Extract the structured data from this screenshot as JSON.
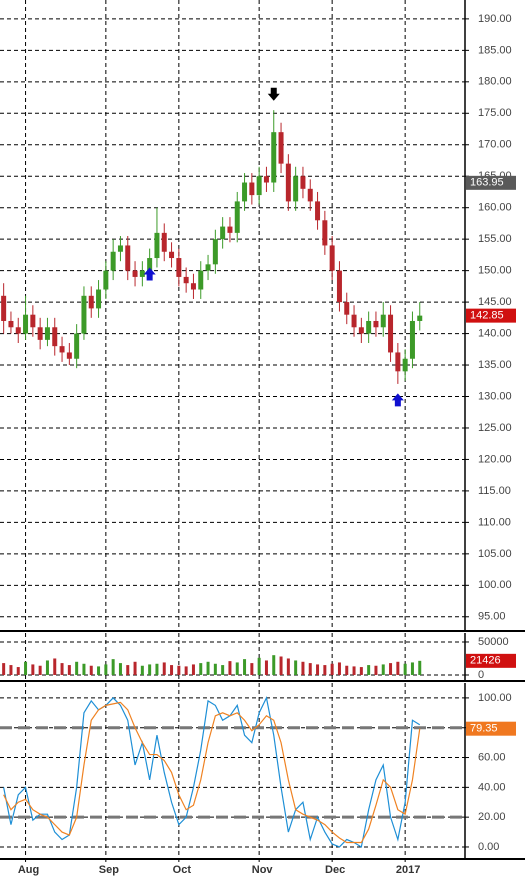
{
  "chart_data": [
    {
      "type": "candlestick",
      "categories": [
        null,
        null,
        null,
        "Aug",
        null,
        null,
        null,
        null,
        null,
        null,
        null,
        null,
        null,
        null,
        "Sep",
        null,
        null,
        null,
        null,
        null,
        null,
        null,
        null,
        null,
        "Oct",
        null,
        null,
        null,
        null,
        null,
        null,
        null,
        null,
        null,
        null,
        "Nov",
        null,
        null,
        null,
        null,
        null,
        null,
        null,
        null,
        null,
        "Dec",
        null,
        null,
        null,
        null,
        null,
        null,
        null,
        null,
        null,
        "2017",
        null,
        null
      ],
      "open": [
        146,
        142,
        141,
        140,
        143,
        141,
        139,
        141,
        138,
        137,
        136,
        140,
        146,
        144,
        147,
        150,
        153,
        154,
        150,
        149,
        150,
        152,
        156,
        153,
        152,
        149,
        148,
        147,
        150,
        151,
        155,
        157,
        156,
        161,
        164,
        162,
        165,
        164,
        172,
        167,
        161,
        165,
        163,
        161,
        158,
        154,
        150,
        145,
        143,
        141,
        140,
        142,
        141,
        143,
        137,
        134,
        136,
        142
      ],
      "high": [
        148,
        143.5,
        142.5,
        146,
        144.5,
        142.5,
        142.5,
        142.5,
        139.5,
        138.5,
        141.5,
        147.5,
        147.5,
        148.5,
        151.5,
        155,
        155.5,
        155.5,
        151.5,
        151.5,
        153.5,
        160,
        157.5,
        154.5,
        153.5,
        150.5,
        149.5,
        151.5,
        152.5,
        156.5,
        158.5,
        158.5,
        162.5,
        165.5,
        165.5,
        166.5,
        166.5,
        175.5,
        173.5,
        168.5,
        166.5,
        166.5,
        164.5,
        162.5,
        159.5,
        155.5,
        151.5,
        146.5,
        144.5,
        142.5,
        143.5,
        143.5,
        145,
        144.5,
        138.5,
        137.5,
        143.5,
        145
      ],
      "low": [
        140,
        140,
        138.5,
        139,
        139.5,
        137.5,
        138,
        136.5,
        135.5,
        135,
        134.5,
        139,
        142.5,
        142.5,
        145.5,
        148.5,
        151.5,
        148.5,
        147.5,
        147.5,
        148.5,
        150.5,
        151.5,
        150.5,
        147.5,
        146.5,
        145.5,
        145.5,
        148.5,
        149.5,
        153.5,
        154.5,
        154.5,
        159.5,
        160.5,
        160.5,
        162.5,
        162.5,
        165.5,
        159.5,
        159.5,
        161.5,
        159.5,
        156.5,
        152.5,
        148.5,
        143.5,
        141.5,
        139.5,
        138.5,
        138.5,
        139.5,
        139.5,
        135.5,
        132,
        132.5,
        134.5,
        140.5
      ],
      "close": [
        142,
        141,
        140,
        143,
        141,
        139,
        141,
        138,
        137,
        136,
        140,
        146,
        144,
        147,
        150,
        153,
        154,
        150,
        149,
        150,
        152,
        156,
        153,
        152,
        149,
        148,
        147,
        150,
        151,
        155,
        157,
        156,
        161,
        164,
        162,
        165,
        164,
        172,
        167,
        161,
        165,
        163,
        161,
        158,
        154,
        150,
        145,
        143,
        141,
        140,
        142,
        141,
        143,
        137,
        134,
        136,
        142,
        142.85
      ],
      "up_color": "#3c9a28",
      "down_color": "#b8262c",
      "ylim": [
        92.9,
        193.0
      ],
      "yticks": [
        {
          "value": 95,
          "label": "95.00"
        },
        {
          "value": 100,
          "label": "100.00"
        },
        {
          "value": 105,
          "label": "105.00"
        },
        {
          "value": 110,
          "label": "110.00"
        },
        {
          "value": 115,
          "label": "115.00"
        },
        {
          "value": 120,
          "label": "120.00"
        },
        {
          "value": 125,
          "label": "125.00"
        },
        {
          "value": 130,
          "label": "130.00"
        },
        {
          "value": 135,
          "label": "135.00"
        },
        {
          "value": 140,
          "label": "140.00"
        },
        {
          "value": 145,
          "label": "145.00"
        },
        {
          "value": 150,
          "label": "150.00"
        },
        {
          "value": 155,
          "label": "155.00"
        },
        {
          "value": 160,
          "label": "160.00"
        },
        {
          "value": 165,
          "label": "165.00"
        },
        {
          "value": 170,
          "label": "170.00"
        },
        {
          "value": 175,
          "label": "175.00"
        },
        {
          "value": 180,
          "label": "180.00"
        },
        {
          "value": 185,
          "label": "185.00"
        },
        {
          "value": 190,
          "label": "190.00"
        }
      ],
      "grid": true,
      "markers": [
        {
          "value": 163.95,
          "color": "#5a5a5a"
        },
        {
          "value": 142.85,
          "color": "#d01010"
        }
      ],
      "signals": [
        {
          "index": 20,
          "value": 150.5,
          "direction": "up",
          "color": "#1010d0"
        },
        {
          "index": 37,
          "value": 177,
          "direction": "down",
          "color": "#000000"
        },
        {
          "index": 54,
          "value": 130.5,
          "direction": "up",
          "color": "#1010d0"
        }
      ]
    },
    {
      "type": "bar",
      "values": [
        18000,
        15000,
        12000,
        20000,
        16000,
        14000,
        22000,
        25000,
        18000,
        15000,
        20000,
        17000,
        14000,
        13000,
        16000,
        24000,
        18000,
        15000,
        20000,
        14000,
        16000,
        17000,
        19000,
        15000,
        14000,
        13000,
        16000,
        18000,
        20000,
        17000,
        15000,
        21000,
        19000,
        24000,
        18000,
        26000,
        22000,
        30000,
        28000,
        25000,
        22000,
        20000,
        18000,
        16000,
        15000,
        17000,
        19000,
        14000,
        13000,
        12000,
        15000,
        14000,
        16000,
        18000,
        20000,
        17000,
        19000,
        21426
      ],
      "ylim": [
        -7600,
        63600
      ],
      "yticks": [
        0,
        50000
      ],
      "grid": true,
      "markers": [
        {
          "value": 21426,
          "color": "#d01010"
        }
      ]
    },
    {
      "type": "line",
      "series": [
        {
          "color": "#1e8fd6",
          "values": [
            40,
            15,
            35,
            40,
            18,
            22,
            22,
            10,
            5,
            8,
            40,
            90,
            98,
            92,
            95,
            100,
            95,
            85,
            55,
            70,
            45,
            75,
            50,
            30,
            15,
            20,
            40,
            65,
            98,
            95,
            85,
            88,
            95,
            75,
            70,
            90,
            100,
            75,
            40,
            10,
            25,
            30,
            5,
            20,
            10,
            2,
            0,
            5,
            3,
            0,
            25,
            45,
            55,
            20,
            5,
            30,
            85,
            82
          ]
        },
        {
          "color": "#ef8222",
          "values": [
            35,
            25,
            30,
            32,
            25,
            22,
            20,
            15,
            10,
            8,
            20,
            55,
            85,
            92,
            95,
            96,
            97,
            92,
            80,
            70,
            62,
            62,
            58,
            50,
            35,
            25,
            28,
            45,
            70,
            88,
            90,
            88,
            90,
            85,
            78,
            82,
            88,
            85,
            70,
            45,
            25,
            22,
            20,
            18,
            15,
            10,
            6,
            3,
            3,
            3,
            12,
            28,
            45,
            40,
            25,
            22,
            45,
            79.35
          ]
        }
      ],
      "ylim": [
        -7.4,
        110
      ],
      "yticks": [
        {
          "value": 0,
          "label": "0.00"
        },
        {
          "value": 20,
          "label": "20.00"
        },
        {
          "value": 40,
          "label": "40.00"
        },
        {
          "value": 60,
          "label": "60.00"
        },
        {
          "value": 80,
          "label": "80.00"
        },
        {
          "value": 100,
          "label": "100.00"
        }
      ],
      "grid": true,
      "levels": [
        80,
        20
      ],
      "markers": [
        {
          "value": 79.35,
          "color": "#f07820"
        }
      ]
    }
  ]
}
